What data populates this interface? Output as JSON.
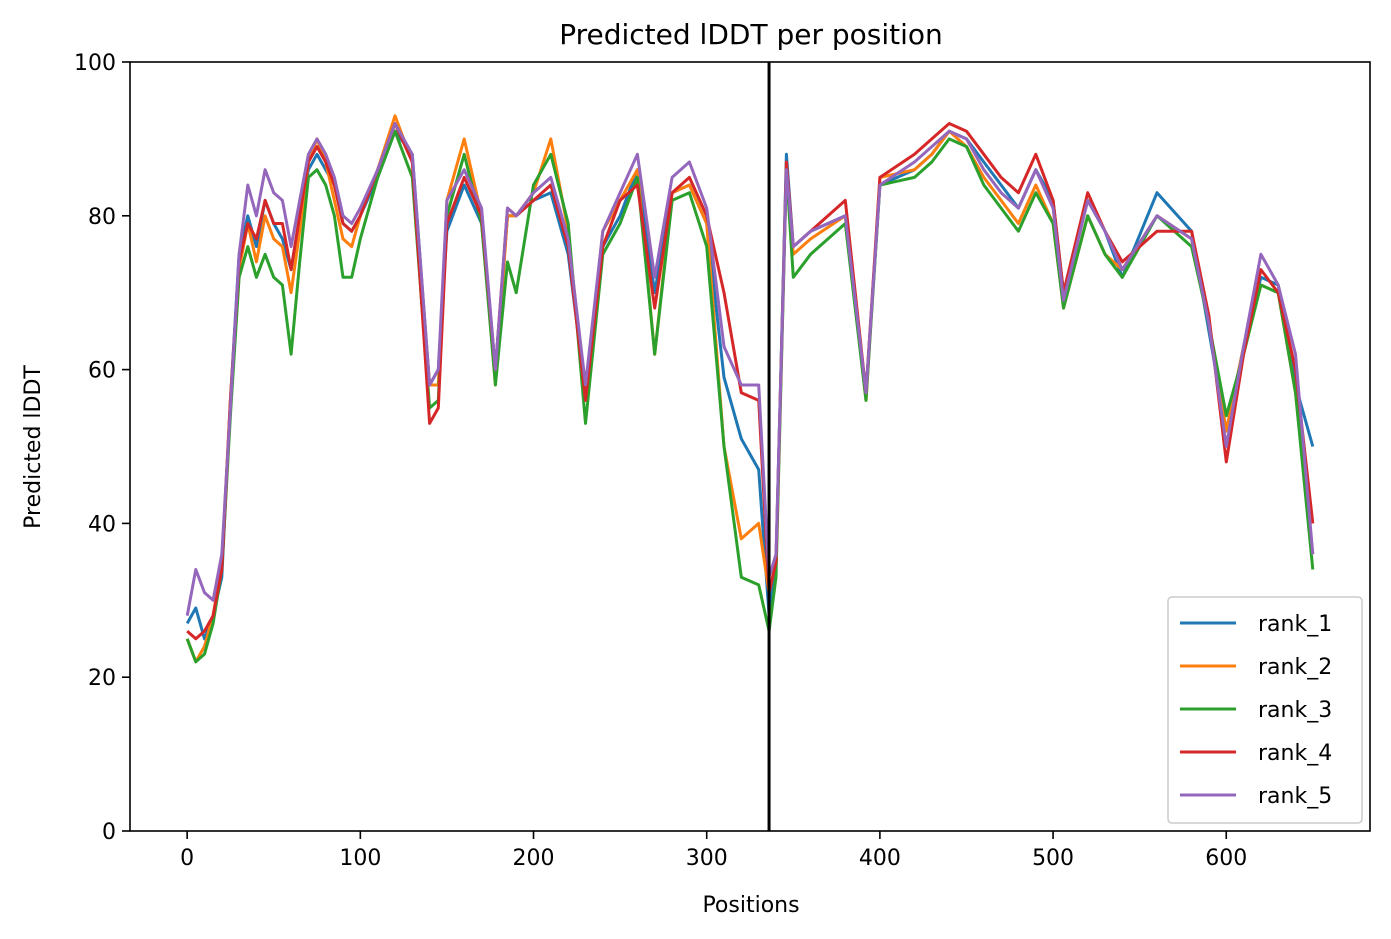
{
  "chart_data": {
    "type": "line",
    "title": "Predicted lDDT per position",
    "xlabel": "Positions",
    "ylabel": "Predicted lDDT",
    "xlim": [
      -33,
      683
    ],
    "ylim": [
      0,
      100
    ],
    "xticks": [
      0,
      100,
      200,
      300,
      400,
      500,
      600
    ],
    "yticks": [
      0,
      20,
      40,
      60,
      80,
      100
    ],
    "grid": false,
    "legend_position": "lower-right",
    "divider_x": 336,
    "x_points": [
      0,
      5,
      10,
      15,
      20,
      25,
      30,
      35,
      40,
      45,
      50,
      55,
      60,
      65,
      70,
      75,
      80,
      85,
      90,
      95,
      100,
      110,
      120,
      130,
      140,
      145,
      150,
      160,
      170,
      178,
      185,
      190,
      200,
      210,
      220,
      230,
      240,
      250,
      260,
      270,
      280,
      290,
      300,
      310,
      320,
      330,
      336,
      340,
      346,
      350,
      360,
      380,
      392,
      400,
      420,
      430,
      440,
      450,
      460,
      470,
      480,
      490,
      500,
      506,
      520,
      530,
      540,
      560,
      580,
      590,
      600,
      610,
      620,
      630,
      640,
      650
    ],
    "series": [
      {
        "name": "rank_1",
        "color": "#1f77b4",
        "values": [
          27,
          29,
          25,
          28,
          33,
          56,
          75,
          80,
          76,
          82,
          79,
          77,
          73,
          80,
          86,
          88,
          86,
          84,
          79,
          78,
          80,
          85,
          91,
          88,
          58,
          60,
          78,
          84,
          79,
          60,
          80,
          80,
          82,
          83,
          75,
          57,
          76,
          80,
          86,
          70,
          83,
          84,
          79,
          59,
          51,
          47,
          28,
          35,
          88,
          76,
          78,
          80,
          57,
          84,
          86,
          88,
          91,
          90,
          87,
          84,
          81,
          86,
          82,
          70,
          82,
          78,
          72,
          83,
          78,
          65,
          52,
          63,
          72,
          71,
          58,
          50
        ]
      },
      {
        "name": "rank_2",
        "color": "#ff7f0e",
        "values": [
          25,
          22,
          24,
          28,
          35,
          56,
          73,
          79,
          74,
          80,
          77,
          76,
          70,
          78,
          87,
          90,
          87,
          82,
          77,
          76,
          80,
          86,
          93,
          87,
          58,
          58,
          82,
          90,
          80,
          58,
          80,
          80,
          83,
          90,
          78,
          56,
          78,
          82,
          86,
          62,
          83,
          84,
          79,
          50,
          38,
          40,
          31,
          35,
          86,
          75,
          77,
          80,
          56,
          85,
          86,
          88,
          91,
          89,
          85,
          82,
          79,
          84,
          79,
          68,
          80,
          75,
          73,
          80,
          77,
          66,
          52,
          63,
          71,
          70,
          57,
          36
        ]
      },
      {
        "name": "rank_3",
        "color": "#2ca02c",
        "values": [
          25,
          22,
          23,
          27,
          34,
          54,
          72,
          76,
          72,
          75,
          72,
          71,
          62,
          74,
          85,
          86,
          84,
          80,
          72,
          72,
          77,
          85,
          91,
          85,
          55,
          56,
          80,
          88,
          79,
          58,
          74,
          70,
          84,
          88,
          79,
          53,
          75,
          79,
          85,
          62,
          82,
          83,
          76,
          50,
          33,
          32,
          26,
          33,
          86,
          72,
          75,
          79,
          56,
          84,
          85,
          87,
          90,
          89,
          84,
          81,
          78,
          83,
          79,
          68,
          80,
          75,
          72,
          80,
          76,
          66,
          54,
          62,
          71,
          70,
          57,
          34
        ]
      },
      {
        "name": "rank_4",
        "color": "#d62728",
        "values": [
          26,
          25,
          26,
          28,
          34,
          56,
          74,
          79,
          77,
          82,
          79,
          79,
          73,
          80,
          87,
          89,
          87,
          84,
          79,
          78,
          80,
          86,
          92,
          87,
          53,
          55,
          79,
          85,
          80,
          60,
          81,
          80,
          82,
          84,
          76,
          56,
          76,
          82,
          84,
          68,
          83,
          85,
          80,
          70,
          57,
          56,
          31,
          35,
          87,
          76,
          78,
          82,
          57,
          85,
          88,
          90,
          92,
          91,
          88,
          85,
          83,
          88,
          82,
          70,
          83,
          78,
          74,
          78,
          78,
          67,
          48,
          62,
          73,
          70,
          60,
          40
        ]
      },
      {
        "name": "rank_5",
        "color": "#9467bd",
        "values": [
          28,
          34,
          31,
          30,
          36,
          55,
          75,
          84,
          80,
          86,
          83,
          82,
          76,
          82,
          88,
          90,
          88,
          85,
          80,
          79,
          81,
          86,
          92,
          88,
          58,
          60,
          82,
          86,
          81,
          60,
          81,
          80,
          83,
          85,
          77,
          58,
          78,
          83,
          88,
          72,
          85,
          87,
          81,
          63,
          58,
          58,
          33,
          36,
          86,
          76,
          78,
          80,
          57,
          84,
          87,
          89,
          91,
          90,
          86,
          83,
          81,
          86,
          81,
          69,
          82,
          78,
          73,
          80,
          77,
          66,
          50,
          63,
          75,
          71,
          62,
          36
        ]
      }
    ]
  }
}
